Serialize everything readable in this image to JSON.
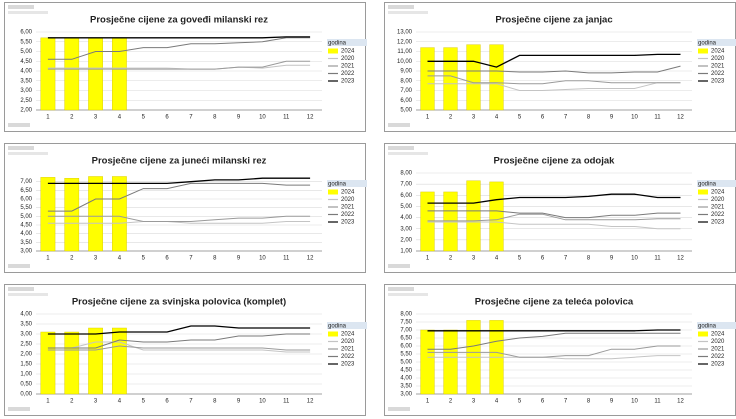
{
  "chart_data": [
    {
      "type": "bar-line",
      "title": "Prosječne cijene za goveđi milanski rez",
      "legend_title": "godina",
      "categories": [
        "1",
        "2",
        "3",
        "4",
        "5",
        "6",
        "7",
        "8",
        "9",
        "10",
        "11",
        "12"
      ],
      "ylim": [
        2,
        6
      ],
      "yticks": [
        {
          "value": 2,
          "label": "2,00"
        },
        {
          "value": 2.5,
          "label": "2,50"
        },
        {
          "value": 3,
          "label": "3,00"
        },
        {
          "value": 3.5,
          "label": "3,50"
        },
        {
          "value": 4,
          "label": "4,00"
        },
        {
          "value": 4.5,
          "label": "4,50"
        },
        {
          "value": 5,
          "label": "5,00"
        },
        {
          "value": 5.5,
          "label": "5,50"
        },
        {
          "value": 6,
          "label": "6,00"
        }
      ],
      "grid": true,
      "series": [
        {
          "name": "2024",
          "color": "#ffff00",
          "kind": "bar",
          "values": [
            5.7,
            5.7,
            5.7,
            5.7,
            null,
            null,
            null,
            null,
            null,
            null,
            null,
            null
          ]
        },
        {
          "name": "2020",
          "color": "#c4c4c4",
          "kind": "line",
          "values": [
            4.15,
            4.15,
            4.15,
            4.15,
            4.15,
            4.15,
            4.1,
            4.1,
            4.2,
            4.15,
            4.3,
            4.3
          ]
        },
        {
          "name": "2021",
          "color": "#9a9a9a",
          "kind": "line",
          "values": [
            4.1,
            4.1,
            4.1,
            4.1,
            4.1,
            4.1,
            4.1,
            4.1,
            4.2,
            4.2,
            4.5,
            4.5
          ]
        },
        {
          "name": "2022",
          "color": "#7a7a7a",
          "kind": "line",
          "values": [
            4.6,
            4.6,
            5.0,
            5.0,
            5.2,
            5.2,
            5.4,
            5.4,
            5.45,
            5.5,
            5.7,
            5.7
          ]
        },
        {
          "name": "2023",
          "color": "#000000",
          "kind": "line",
          "values": [
            5.7,
            5.7,
            5.7,
            5.7,
            5.7,
            5.7,
            5.7,
            5.7,
            5.7,
            5.7,
            5.75,
            5.75
          ]
        }
      ]
    },
    {
      "type": "bar-line",
      "title": "Prosječne cijene za janjac",
      "legend_title": "godina",
      "categories": [
        "1",
        "2",
        "3",
        "4",
        "5",
        "6",
        "7",
        "8",
        "9",
        "10",
        "11",
        "12"
      ],
      "ylim": [
        5,
        13
      ],
      "yticks": [
        {
          "value": 5,
          "label": "5,00"
        },
        {
          "value": 6,
          "label": "6,00"
        },
        {
          "value": 7,
          "label": "7,00"
        },
        {
          "value": 8,
          "label": "8,00"
        },
        {
          "value": 9,
          "label": "9,00"
        },
        {
          "value": 10,
          "label": "10,00"
        },
        {
          "value": 11,
          "label": "11,00"
        },
        {
          "value": 12,
          "label": "12,00"
        },
        {
          "value": 13,
          "label": "13,00"
        }
      ],
      "grid": true,
      "series": [
        {
          "name": "2024",
          "color": "#ffff00",
          "kind": "bar",
          "values": [
            11.4,
            11.4,
            11.7,
            11.7,
            null,
            null,
            null,
            null,
            null,
            null,
            null,
            null
          ]
        },
        {
          "name": "2020",
          "color": "#c4c4c4",
          "kind": "line",
          "values": [
            7.7,
            7.7,
            7.7,
            7.7,
            7.0,
            7.0,
            7.1,
            7.2,
            7.2,
            7.2,
            7.8,
            7.8
          ]
        },
        {
          "name": "2021",
          "color": "#9a9a9a",
          "kind": "line",
          "values": [
            8.5,
            8.5,
            7.8,
            7.8,
            7.7,
            7.7,
            8.0,
            8.0,
            7.8,
            7.8,
            7.8,
            7.8
          ]
        },
        {
          "name": "2022",
          "color": "#7a7a7a",
          "kind": "line",
          "values": [
            9.0,
            9.0,
            9.0,
            9.0,
            8.9,
            8.9,
            9.0,
            8.8,
            8.8,
            8.9,
            8.9,
            9.5
          ]
        },
        {
          "name": "2023",
          "color": "#000000",
          "kind": "line",
          "values": [
            10.0,
            10.0,
            10.0,
            9.4,
            10.6,
            10.6,
            10.6,
            10.6,
            10.6,
            10.6,
            10.7,
            10.7
          ]
        }
      ]
    },
    {
      "type": "bar-line",
      "title": "Prosječne cijene za juneći milanski rez",
      "legend_title": "godina",
      "categories": [
        "1",
        "2",
        "3",
        "4",
        "5",
        "6",
        "7",
        "8",
        "9",
        "10",
        "11",
        "12"
      ],
      "ylim": [
        3,
        7.5
      ],
      "yticks": [
        {
          "value": 3,
          "label": "3,00"
        },
        {
          "value": 3.5,
          "label": "3,50"
        },
        {
          "value": 4,
          "label": "4,00"
        },
        {
          "value": 4.5,
          "label": "4,50"
        },
        {
          "value": 5,
          "label": "5,00"
        },
        {
          "value": 5.5,
          "label": "5,50"
        },
        {
          "value": 6,
          "label": "6,00"
        },
        {
          "value": 6.5,
          "label": "6,50"
        },
        {
          "value": 7,
          "label": "7,00"
        }
      ],
      "grid": true,
      "series": [
        {
          "name": "2024",
          "color": "#ffff00",
          "kind": "bar",
          "values": [
            7.25,
            7.2,
            7.3,
            7.3,
            null,
            null,
            null,
            null,
            null,
            null,
            null,
            null
          ]
        },
        {
          "name": "2020",
          "color": "#c4c4c4",
          "kind": "line",
          "values": [
            4.6,
            4.6,
            4.6,
            4.6,
            4.7,
            4.7,
            4.6,
            4.6,
            4.6,
            4.6,
            4.7,
            4.7
          ]
        },
        {
          "name": "2021",
          "color": "#9a9a9a",
          "kind": "line",
          "values": [
            5.0,
            5.0,
            5.0,
            5.0,
            4.7,
            4.7,
            4.7,
            4.8,
            4.9,
            4.9,
            5.0,
            5.0
          ]
        },
        {
          "name": "2022",
          "color": "#7a7a7a",
          "kind": "line",
          "values": [
            5.3,
            5.3,
            6.0,
            6.0,
            6.6,
            6.6,
            6.9,
            6.9,
            6.9,
            6.9,
            6.8,
            6.8
          ]
        },
        {
          "name": "2023",
          "color": "#000000",
          "kind": "line",
          "values": [
            6.9,
            6.9,
            6.9,
            6.9,
            6.9,
            6.9,
            7.0,
            7.1,
            7.1,
            7.2,
            7.2,
            7.2
          ]
        }
      ]
    },
    {
      "type": "bar-line",
      "title": "Prosječne cijene za odojak",
      "legend_title": "godina",
      "categories": [
        "1",
        "2",
        "3",
        "4",
        "5",
        "6",
        "7",
        "8",
        "9",
        "10",
        "11",
        "12"
      ],
      "ylim": [
        1,
        8
      ],
      "yticks": [
        {
          "value": 1,
          "label": "1,00"
        },
        {
          "value": 2,
          "label": "2,00"
        },
        {
          "value": 3,
          "label": "3,00"
        },
        {
          "value": 4,
          "label": "4,00"
        },
        {
          "value": 5,
          "label": "5,00"
        },
        {
          "value": 6,
          "label": "6,00"
        },
        {
          "value": 7,
          "label": "7,00"
        },
        {
          "value": 8,
          "label": "8,00"
        }
      ],
      "grid": true,
      "series": [
        {
          "name": "2024",
          "color": "#ffff00",
          "kind": "bar",
          "values": [
            6.3,
            6.3,
            7.3,
            7.2,
            null,
            null,
            null,
            null,
            null,
            null,
            null,
            null
          ]
        },
        {
          "name": "2020",
          "color": "#c4c4c4",
          "kind": "line",
          "values": [
            3.6,
            3.6,
            3.6,
            3.6,
            3.4,
            3.4,
            3.4,
            3.4,
            3.2,
            3.2,
            3.0,
            3.0
          ]
        },
        {
          "name": "2021",
          "color": "#9a9a9a",
          "kind": "line",
          "values": [
            3.7,
            3.7,
            3.7,
            3.8,
            4.3,
            4.3,
            3.8,
            3.8,
            3.8,
            3.8,
            3.9,
            3.9
          ]
        },
        {
          "name": "2022",
          "color": "#7a7a7a",
          "kind": "line",
          "values": [
            4.6,
            4.6,
            4.6,
            4.6,
            4.4,
            4.4,
            4.0,
            4.0,
            4.2,
            4.2,
            4.4,
            4.4
          ]
        },
        {
          "name": "2023",
          "color": "#000000",
          "kind": "line",
          "values": [
            5.3,
            5.3,
            5.3,
            5.6,
            5.8,
            5.8,
            5.8,
            5.9,
            6.1,
            6.1,
            5.8,
            5.8
          ]
        }
      ]
    },
    {
      "type": "bar-line",
      "title": "Prosječne cijene za svinjska polovica (komplet)",
      "legend_title": "godina",
      "categories": [
        "1",
        "2",
        "3",
        "4",
        "5",
        "6",
        "7",
        "8",
        "9",
        "10",
        "11",
        "12"
      ],
      "ylim": [
        0,
        4
      ],
      "yticks": [
        {
          "value": 0,
          "label": "0,00"
        },
        {
          "value": 0.5,
          "label": "0,50"
        },
        {
          "value": 1,
          "label": "1,00"
        },
        {
          "value": 1.5,
          "label": "1,50"
        },
        {
          "value": 2,
          "label": "2,00"
        },
        {
          "value": 2.5,
          "label": "2,50"
        },
        {
          "value": 3,
          "label": "3,00"
        },
        {
          "value": 3.5,
          "label": "3,50"
        },
        {
          "value": 4,
          "label": "4,00"
        }
      ],
      "grid": true,
      "series": [
        {
          "name": "2024",
          "color": "#ffff00",
          "kind": "bar",
          "values": [
            3.1,
            3.1,
            3.3,
            3.3,
            null,
            null,
            null,
            null,
            null,
            null,
            null,
            null
          ]
        },
        {
          "name": "2020",
          "color": "#c4c4c4",
          "kind": "line",
          "values": [
            2.3,
            2.3,
            2.6,
            2.6,
            2.2,
            2.2,
            2.2,
            2.2,
            2.2,
            2.2,
            2.1,
            2.1
          ]
        },
        {
          "name": "2021",
          "color": "#9a9a9a",
          "kind": "line",
          "values": [
            2.2,
            2.2,
            2.2,
            2.4,
            2.3,
            2.3,
            2.3,
            2.3,
            2.3,
            2.3,
            2.2,
            2.2
          ]
        },
        {
          "name": "2022",
          "color": "#7a7a7a",
          "kind": "line",
          "values": [
            2.3,
            2.3,
            2.3,
            2.7,
            2.6,
            2.6,
            2.7,
            2.7,
            2.9,
            2.9,
            3.0,
            3.0
          ]
        },
        {
          "name": "2023",
          "color": "#000000",
          "kind": "line",
          "values": [
            3.0,
            3.0,
            3.0,
            3.1,
            3.1,
            3.1,
            3.4,
            3.4,
            3.3,
            3.3,
            3.3,
            3.3
          ]
        }
      ]
    },
    {
      "type": "bar-line",
      "title": "Prosječne cijene za teleća polovica",
      "legend_title": "godina",
      "categories": [
        "1",
        "2",
        "3",
        "4",
        "5",
        "6",
        "7",
        "8",
        "9",
        "10",
        "11",
        "12"
      ],
      "ylim": [
        3,
        8
      ],
      "yticks": [
        {
          "value": 3,
          "label": "3,00"
        },
        {
          "value": 3.5,
          "label": "3,50"
        },
        {
          "value": 4,
          "label": "4,00"
        },
        {
          "value": 4.5,
          "label": "4,50"
        },
        {
          "value": 5,
          "label": "5,00"
        },
        {
          "value": 5.5,
          "label": "5,50"
        },
        {
          "value": 6,
          "label": "6,00"
        },
        {
          "value": 6.5,
          "label": "6,50"
        },
        {
          "value": 7,
          "label": "7,00"
        },
        {
          "value": 7.5,
          "label": "7,50"
        },
        {
          "value": 8,
          "label": "8,00"
        }
      ],
      "grid": true,
      "series": [
        {
          "name": "2024",
          "color": "#ffff00",
          "kind": "bar",
          "values": [
            7.0,
            7.0,
            7.6,
            7.6,
            null,
            null,
            null,
            null,
            null,
            null,
            null,
            null
          ]
        },
        {
          "name": "2020",
          "color": "#c4c4c4",
          "kind": "line",
          "values": [
            5.3,
            5.3,
            5.3,
            5.3,
            5.3,
            5.3,
            5.2,
            5.2,
            5.2,
            5.3,
            5.4,
            5.4
          ]
        },
        {
          "name": "2021",
          "color": "#9a9a9a",
          "kind": "line",
          "values": [
            5.6,
            5.6,
            5.6,
            5.6,
            5.3,
            5.3,
            5.4,
            5.4,
            5.8,
            5.8,
            6.0,
            6.0
          ]
        },
        {
          "name": "2022",
          "color": "#7a7a7a",
          "kind": "line",
          "values": [
            5.8,
            5.8,
            6.0,
            6.3,
            6.5,
            6.6,
            6.8,
            6.8,
            6.8,
            6.8,
            6.8,
            6.8
          ]
        },
        {
          "name": "2023",
          "color": "#000000",
          "kind": "line",
          "values": [
            6.95,
            6.95,
            6.95,
            6.95,
            6.95,
            6.95,
            6.95,
            6.95,
            6.95,
            6.95,
            7.0,
            7.0
          ]
        }
      ]
    }
  ]
}
